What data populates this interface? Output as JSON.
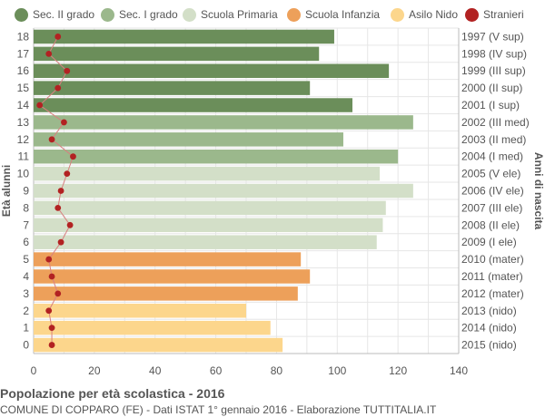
{
  "legend": [
    {
      "label": "Sec. II grado",
      "color": "#6b8e5a"
    },
    {
      "label": "Sec. I grado",
      "color": "#9bb88c"
    },
    {
      "label": "Scuola Primaria",
      "color": "#d3dfc8"
    },
    {
      "label": "Scuola Infanzia",
      "color": "#eda05a"
    },
    {
      "label": "Asilo Nido",
      "color": "#fcd68c"
    },
    {
      "label": "Stranieri",
      "color": "#b22222"
    }
  ],
  "footer": {
    "title": "Popolazione per età scolastica - 2016",
    "subtitle": "COMUNE DI COPPARO (FE) - Dati ISTAT 1° gennaio 2016 - Elaborazione TUTTITALIA.IT"
  },
  "chart_data": {
    "type": "bar",
    "orientation": "horizontal",
    "ylabel": "Età alunni",
    "ylabel_right": "Anni di nascita",
    "xlim": [
      0,
      140
    ],
    "xticks": [
      0,
      20,
      40,
      60,
      80,
      100,
      120,
      140
    ],
    "grid": true,
    "legend_position": "top",
    "stranieri_line_color": "#d98080",
    "rows": [
      {
        "age": "18",
        "year": "1997 (V sup)",
        "value": 99,
        "stranieri": 8,
        "group": 0
      },
      {
        "age": "17",
        "year": "1998 (IV sup)",
        "value": 94,
        "stranieri": 5,
        "group": 0
      },
      {
        "age": "16",
        "year": "1999 (III sup)",
        "value": 117,
        "stranieri": 11,
        "group": 0
      },
      {
        "age": "15",
        "year": "2000 (II sup)",
        "value": 91,
        "stranieri": 8,
        "group": 0
      },
      {
        "age": "14",
        "year": "2001 (I sup)",
        "value": 105,
        "stranieri": 2,
        "group": 0
      },
      {
        "age": "13",
        "year": "2002 (III med)",
        "value": 125,
        "stranieri": 10,
        "group": 1
      },
      {
        "age": "12",
        "year": "2003 (II med)",
        "value": 102,
        "stranieri": 6,
        "group": 1
      },
      {
        "age": "11",
        "year": "2004 (I med)",
        "value": 120,
        "stranieri": 13,
        "group": 1
      },
      {
        "age": "10",
        "year": "2005 (V ele)",
        "value": 114,
        "stranieri": 11,
        "group": 2
      },
      {
        "age": "9",
        "year": "2006 (IV ele)",
        "value": 125,
        "stranieri": 9,
        "group": 2
      },
      {
        "age": "8",
        "year": "2007 (III ele)",
        "value": 116,
        "stranieri": 8,
        "group": 2
      },
      {
        "age": "7",
        "year": "2008 (II ele)",
        "value": 115,
        "stranieri": 12,
        "group": 2
      },
      {
        "age": "6",
        "year": "2009 (I ele)",
        "value": 113,
        "stranieri": 9,
        "group": 2
      },
      {
        "age": "5",
        "year": "2010 (mater)",
        "value": 88,
        "stranieri": 5,
        "group": 3
      },
      {
        "age": "4",
        "year": "2011 (mater)",
        "value": 91,
        "stranieri": 6,
        "group": 3
      },
      {
        "age": "3",
        "year": "2012 (mater)",
        "value": 87,
        "stranieri": 8,
        "group": 3
      },
      {
        "age": "2",
        "year": "2013 (nido)",
        "value": 70,
        "stranieri": 5,
        "group": 4
      },
      {
        "age": "1",
        "year": "2014 (nido)",
        "value": 78,
        "stranieri": 6,
        "group": 4
      },
      {
        "age": "0",
        "year": "2015 (nido)",
        "value": 82,
        "stranieri": 6,
        "group": 4
      }
    ]
  }
}
